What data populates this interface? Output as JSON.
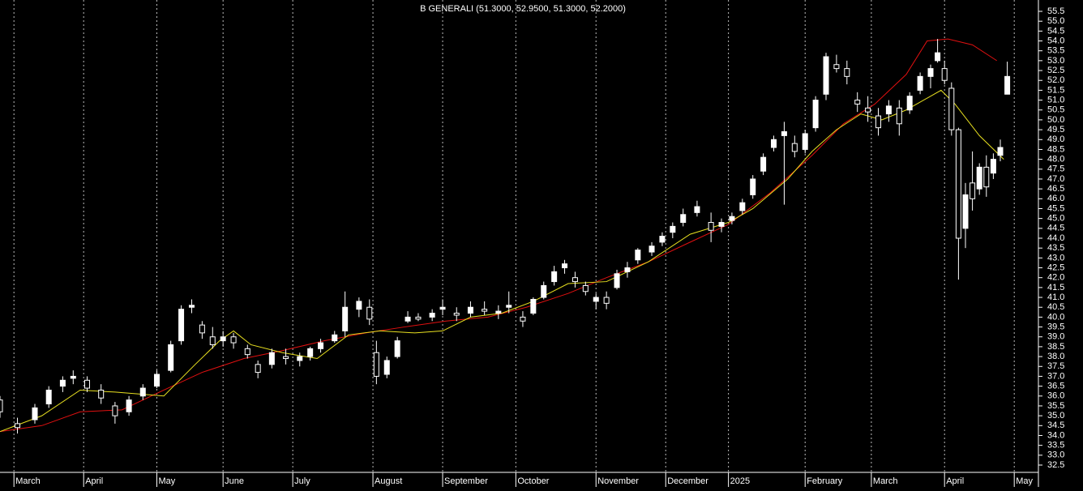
{
  "chart_data": {
    "type": "candlestick",
    "title": "B GENERALI (51.3000, 52.9500, 51.3000, 52.2000)",
    "x": [
      0,
      5,
      10,
      14,
      18,
      21,
      25,
      29,
      33,
      37,
      41,
      45,
      49,
      52,
      55,
      58,
      61,
      64,
      67,
      71,
      74,
      78,
      82,
      86,
      89,
      92,
      96,
      99,
      103,
      106,
      108,
      111,
      114,
      117,
      120,
      124,
      127,
      131,
      135,
      139,
      143,
      146,
      150,
      153,
      156,
      159,
      162,
      165,
      168,
      171,
      174,
      177,
      180,
      183,
      187,
      190,
      193,
      196,
      200,
      204,
      207,
      210,
      213,
      216,
      219,
      222,
      225,
      228,
      231,
      234,
      237,
      240,
      243,
      246,
      249,
      252,
      255,
      258,
      261,
      264,
      267,
      269,
      271,
      273,
      275,
      277,
      279,
      281,
      283,
      285,
      287,
      289
    ],
    "open": [
      35.8,
      34.6,
      34.8,
      35.6,
      36.5,
      36.9,
      36.8,
      36.3,
      35.5,
      35.2,
      36.0,
      36.5,
      37.3,
      38.8,
      40.5,
      39.6,
      39.0,
      38.8,
      39.0,
      38.4,
      37.6,
      37.6,
      38.0,
      37.8,
      38.0,
      38.4,
      38.8,
      39.3,
      40.4,
      40.5,
      38.2,
      37.1,
      38.0,
      39.8,
      40.0,
      40.0,
      40.4,
      40.2,
      40.2,
      40.4,
      40.2,
      40.5,
      40.0,
      40.2,
      41.0,
      41.8,
      42.5,
      42.0,
      41.6,
      40.8,
      41.0,
      41.5,
      42.3,
      42.9,
      43.3,
      43.8,
      44.3,
      44.8,
      45.3,
      44.8,
      44.6,
      44.9,
      45.4,
      46.2,
      47.4,
      48.6,
      49.2,
      48.8,
      48.5,
      49.6,
      51.3,
      52.8,
      52.6,
      51.0,
      50.6,
      50.2,
      50.3,
      50.6,
      50.5,
      51.5,
      52.2,
      53.0,
      52.6,
      51.6,
      49.5,
      44.5,
      46.8,
      46.5,
      47.6,
      47.3,
      48.2,
      51.3
    ],
    "high": [
      36.0,
      34.9,
      35.6,
      36.5,
      37.0,
      37.3,
      37.0,
      36.6,
      35.7,
      36.0,
      36.6,
      37.3,
      38.8,
      40.6,
      40.9,
      39.8,
      39.5,
      39.3,
      39.2,
      38.6,
      37.8,
      38.4,
      38.4,
      38.2,
      38.5,
      38.9,
      39.3,
      41.3,
      41.0,
      40.9,
      38.8,
      38.0,
      39.0,
      40.3,
      40.2,
      40.4,
      40.9,
      40.5,
      40.8,
      40.8,
      40.6,
      41.3,
      40.3,
      41.0,
      41.8,
      42.6,
      42.9,
      42.3,
      41.8,
      41.2,
      41.3,
      42.4,
      42.8,
      43.5,
      43.8,
      44.3,
      44.8,
      45.5,
      45.9,
      45.3,
      45.0,
      45.3,
      46.0,
      47.2,
      48.3,
      49.2,
      49.9,
      49.2,
      49.5,
      51.2,
      53.4,
      53.3,
      53.0,
      51.4,
      51.2,
      50.6,
      51.0,
      51.0,
      51.4,
      52.4,
      52.8,
      54.1,
      53.0,
      51.9,
      49.6,
      46.8,
      48.4,
      47.8,
      48.2,
      48.3,
      49.0,
      52.95
    ],
    "low": [
      34.9,
      34.1,
      34.6,
      35.4,
      36.2,
      36.6,
      36.2,
      35.6,
      34.6,
      35.0,
      35.8,
      36.4,
      37.2,
      38.6,
      40.2,
      38.9,
      38.4,
      38.5,
      38.4,
      37.9,
      36.9,
      37.4,
      37.6,
      37.5,
      37.8,
      38.2,
      38.7,
      39.0,
      40.0,
      39.6,
      36.6,
      36.9,
      37.9,
      39.7,
      39.8,
      39.8,
      40.1,
      39.8,
      40.0,
      40.1,
      39.9,
      40.2,
      39.5,
      40.1,
      40.9,
      41.6,
      42.2,
      41.5,
      41.1,
      40.4,
      40.4,
      41.4,
      42.0,
      42.7,
      43.1,
      43.6,
      44.0,
      44.6,
      45.1,
      43.8,
      44.3,
      44.7,
      45.2,
      46.0,
      47.2,
      48.4,
      45.7,
      48.1,
      48.3,
      49.4,
      51.0,
      52.4,
      51.8,
      50.4,
      49.9,
      49.2,
      49.9,
      49.2,
      50.3,
      51.3,
      51.6,
      52.9,
      51.8,
      49.2,
      41.9,
      43.5,
      45.4,
      46.2,
      46.1,
      47.0,
      47.9,
      51.3
    ],
    "close": [
      35.2,
      34.4,
      35.4,
      36.3,
      36.8,
      37.0,
      36.4,
      35.9,
      35.0,
      35.8,
      36.4,
      37.1,
      38.6,
      40.4,
      40.6,
      39.2,
      38.6,
      39.0,
      38.7,
      38.1,
      37.2,
      38.2,
      37.9,
      38.0,
      38.4,
      38.7,
      39.1,
      40.5,
      40.8,
      39.9,
      37.0,
      37.8,
      38.8,
      40.0,
      39.9,
      40.2,
      40.5,
      40.1,
      40.5,
      40.3,
      40.3,
      40.6,
      39.8,
      40.9,
      41.6,
      42.3,
      42.7,
      41.8,
      41.3,
      41.0,
      40.7,
      42.2,
      42.5,
      43.4,
      43.6,
      44.1,
      44.6,
      45.2,
      45.6,
      44.4,
      44.8,
      45.1,
      45.8,
      47.0,
      48.1,
      49.0,
      49.4,
      48.4,
      49.3,
      51.0,
      53.2,
      52.6,
      52.2,
      50.8,
      50.4,
      49.6,
      50.7,
      49.8,
      51.2,
      52.2,
      52.6,
      53.4,
      52.0,
      49.5,
      44.0,
      46.2,
      46.0,
      47.6,
      46.6,
      48.0,
      48.6,
      52.2
    ],
    "lines": [
      {
        "color": "#e01010",
        "x": [
          0,
          12,
          23,
          35,
          47,
          58,
          70,
          81,
          93,
          105,
          116,
          128,
          140,
          151,
          163,
          174,
          186,
          198,
          209,
          221,
          233,
          242,
          251,
          260,
          266,
          272,
          279,
          286
        ],
        "values": [
          34.2,
          34.5,
          35.2,
          35.3,
          36.3,
          37.2,
          37.9,
          38.3,
          38.8,
          39.2,
          39.5,
          39.8,
          40.0,
          40.5,
          41.2,
          42.0,
          42.8,
          43.8,
          44.7,
          46.3,
          48.2,
          49.8,
          50.8,
          52.3,
          54.0,
          54.1,
          53.8,
          53.0
        ]
      },
      {
        "color": "#e8e020",
        "x": [
          0,
          12,
          23,
          33,
          47,
          56,
          63,
          67,
          72,
          81,
          91,
          100,
          109,
          119,
          127,
          135,
          144,
          153,
          163,
          174,
          186,
          198,
          209,
          216,
          226,
          233,
          240,
          247,
          253,
          260,
          270,
          274,
          281,
          288
        ],
        "values": [
          34.2,
          35.0,
          36.3,
          36.2,
          36.0,
          37.6,
          38.8,
          39.3,
          38.6,
          38.2,
          37.9,
          39.1,
          39.3,
          39.2,
          39.3,
          40.0,
          40.2,
          40.8,
          41.7,
          41.8,
          42.8,
          44.2,
          44.8,
          45.5,
          47.0,
          48.4,
          49.5,
          50.3,
          50.0,
          50.5,
          51.5,
          50.8,
          49.2,
          48.0
        ]
      }
    ],
    "up_color": "#ffffff",
    "down_color": "#000000",
    "xlim": [
      0,
      297.7
    ],
    "xticks": [
      {
        "value": 4,
        "label": "March"
      },
      {
        "value": 24,
        "label": "April"
      },
      {
        "value": 45,
        "label": "May"
      },
      {
        "value": 64,
        "label": "June"
      },
      {
        "value": 84,
        "label": "July"
      },
      {
        "value": 107,
        "label": "August"
      },
      {
        "value": 127,
        "label": "September"
      },
      {
        "value": 148,
        "label": "October"
      },
      {
        "value": 171,
        "label": "November"
      },
      {
        "value": 191,
        "label": "December"
      },
      {
        "value": 209,
        "label": "2025"
      },
      {
        "value": 231,
        "label": "February"
      },
      {
        "value": 250,
        "label": "March"
      },
      {
        "value": 271,
        "label": "April"
      },
      {
        "value": 291,
        "label": "May"
      }
    ],
    "ylim": [
      32.5,
      55.5
    ],
    "yticks": [
      32.5,
      {
        "value": 33,
        "label": "33.0"
      },
      33.5,
      {
        "value": 34,
        "label": "34.0"
      },
      34.5,
      {
        "value": 35,
        "label": "35.0"
      },
      35.5,
      {
        "value": 36,
        "label": "36.0"
      },
      36.5,
      {
        "value": 37,
        "label": "37.0"
      },
      37.5,
      {
        "value": 38,
        "label": "38.0"
      },
      38.5,
      {
        "value": 39,
        "label": "39.0"
      },
      39.5,
      {
        "value": 40,
        "label": "40.0"
      },
      40.5,
      {
        "value": 41,
        "label": "41.0"
      },
      41.5,
      {
        "value": 42,
        "label": "42.0"
      },
      42.5,
      {
        "value": 43,
        "label": "43.0"
      },
      43.5,
      {
        "value": 44,
        "label": "44.0"
      },
      44.5,
      {
        "value": 45,
        "label": "45.0"
      },
      45.5,
      {
        "value": 46,
        "label": "46.0"
      },
      46.5,
      {
        "value": 47,
        "label": "47.0"
      },
      47.5,
      {
        "value": 48,
        "label": "48.0"
      },
      48.5,
      {
        "value": 49,
        "label": "49.0"
      },
      49.5,
      {
        "value": 50,
        "label": "50.0"
      },
      50.5,
      {
        "value": 51,
        "label": "51.0"
      },
      51.5,
      {
        "value": 52,
        "label": "52.0"
      },
      52.5,
      {
        "value": 53,
        "label": "53.0"
      },
      53.5,
      {
        "value": 54,
        "label": "54.0"
      },
      54.5,
      {
        "value": 55,
        "label": "55.0"
      },
      55.5
    ]
  }
}
